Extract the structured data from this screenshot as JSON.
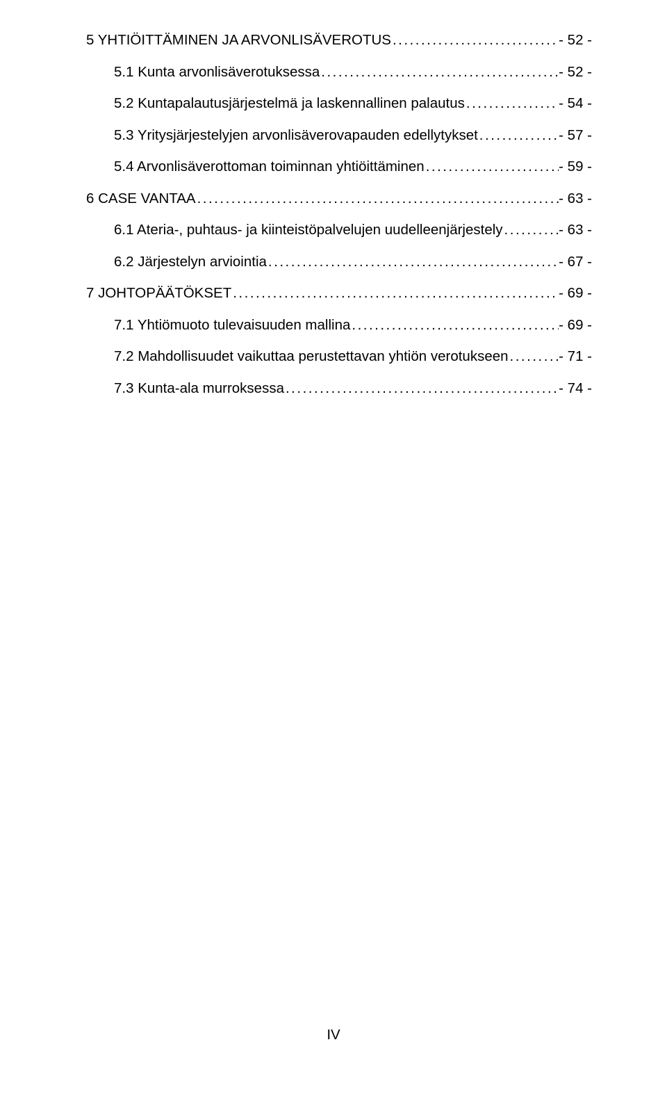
{
  "toc": [
    {
      "level": 0,
      "label": "5 YHTIÖITTÄMINEN JA ARVONLISÄVEROTUS",
      "page": "- 52 -"
    },
    {
      "level": 1,
      "label": "5.1 Kunta arvonlisäverotuksessa",
      "page": "- 52 -"
    },
    {
      "level": 1,
      "label": "5.2 Kuntapalautusjärjestelmä ja laskennallinen palautus",
      "page": "- 54 -"
    },
    {
      "level": 1,
      "label": "5.3 Yritysjärjestelyjen arvonlisäverovapauden edellytykset",
      "page": "- 57 -"
    },
    {
      "level": 1,
      "label": "5.4 Arvonlisäverottoman toiminnan yhtiöittäminen",
      "page": "- 59 -"
    },
    {
      "level": 0,
      "label": "6 CASE VANTAA",
      "page": "- 63 -"
    },
    {
      "level": 1,
      "label": "6.1 Ateria-, puhtaus- ja kiinteistöpalvelujen uudelleenjärjestely",
      "page": "- 63 -"
    },
    {
      "level": 1,
      "label": "6.2 Järjestelyn arviointia",
      "page": "- 67 -"
    },
    {
      "level": 0,
      "label": "7 JOHTOPÄÄTÖKSET",
      "page": "- 69 -"
    },
    {
      "level": 1,
      "label": "7.1 Yhtiömuoto tulevaisuuden mallina",
      "page": "- 69 -"
    },
    {
      "level": 1,
      "label": "7.2 Mahdollisuudet vaikuttaa perustettavan yhtiön verotukseen",
      "page": "- 71 -"
    },
    {
      "level": 1,
      "label": "7.3 Kunta-ala murroksessa",
      "page": "- 74 -"
    }
  ],
  "footer": "IV"
}
